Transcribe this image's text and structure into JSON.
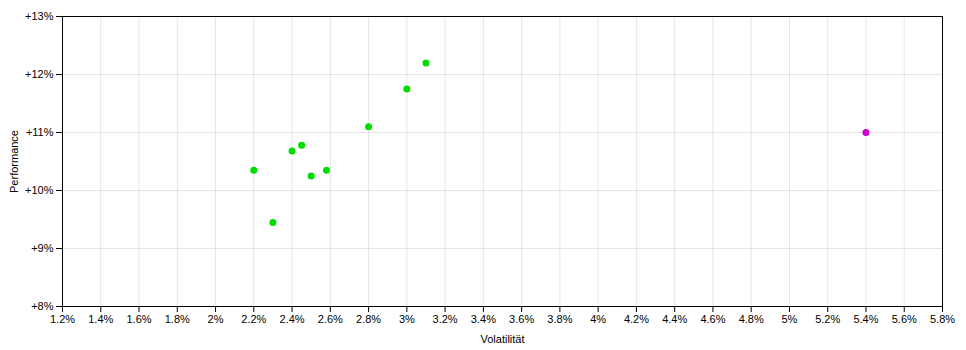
{
  "chart_data": {
    "type": "scatter",
    "xlabel": "Volatilität",
    "ylabel": "Performance",
    "series": [
      {
        "color": "#00dd00",
        "marker": "circle",
        "x": [
          0.022,
          0.023,
          0.024,
          0.0245,
          0.025,
          0.0258,
          0.028,
          0.03,
          0.031
        ],
        "values": [
          0.1035,
          0.0945,
          0.1068,
          0.1078,
          0.1025,
          0.1035,
          0.111,
          0.1175,
          0.122
        ]
      },
      {
        "color": "#cc00cc",
        "marker": "circle",
        "x": [
          0.054
        ],
        "values": [
          0.11
        ]
      }
    ],
    "xlim": [
      0.012,
      0.058
    ],
    "ylim": [
      0.08,
      0.13
    ],
    "xticks": [
      {
        "value": 0.012,
        "label": "1.2%"
      },
      {
        "value": 0.014,
        "label": "1.4%"
      },
      {
        "value": 0.016,
        "label": "1.6%"
      },
      {
        "value": 0.018,
        "label": "1.8%"
      },
      {
        "value": 0.02,
        "label": "2%"
      },
      {
        "value": 0.022,
        "label": "2.2%"
      },
      {
        "value": 0.024,
        "label": "2.4%"
      },
      {
        "value": 0.026,
        "label": "2.6%"
      },
      {
        "value": 0.028,
        "label": "2.8%"
      },
      {
        "value": 0.03,
        "label": "3%"
      },
      {
        "value": 0.032,
        "label": "3.2%"
      },
      {
        "value": 0.034,
        "label": "3.4%"
      },
      {
        "value": 0.036,
        "label": "3.6%"
      },
      {
        "value": 0.038,
        "label": "3.8%"
      },
      {
        "value": 0.04,
        "label": "4%"
      },
      {
        "value": 0.042,
        "label": "4.2%"
      },
      {
        "value": 0.044,
        "label": "4.4%"
      },
      {
        "value": 0.046,
        "label": "4.6%"
      },
      {
        "value": 0.048,
        "label": "4.8%"
      },
      {
        "value": 0.05,
        "label": "5%"
      },
      {
        "value": 0.052,
        "label": "5.2%"
      },
      {
        "value": 0.054,
        "label": "5.4%"
      },
      {
        "value": 0.056,
        "label": "5.6%"
      },
      {
        "value": 0.058,
        "label": "5.8%"
      }
    ],
    "yticks": [
      {
        "value": 0.08,
        "label": "+8%"
      },
      {
        "value": 0.09,
        "label": "+9%"
      },
      {
        "value": 0.1,
        "label": "+10%"
      },
      {
        "value": 0.11,
        "label": "+11%"
      },
      {
        "value": 0.12,
        "label": "+12%"
      },
      {
        "value": 0.13,
        "label": "+13%"
      }
    ],
    "grid": true
  }
}
